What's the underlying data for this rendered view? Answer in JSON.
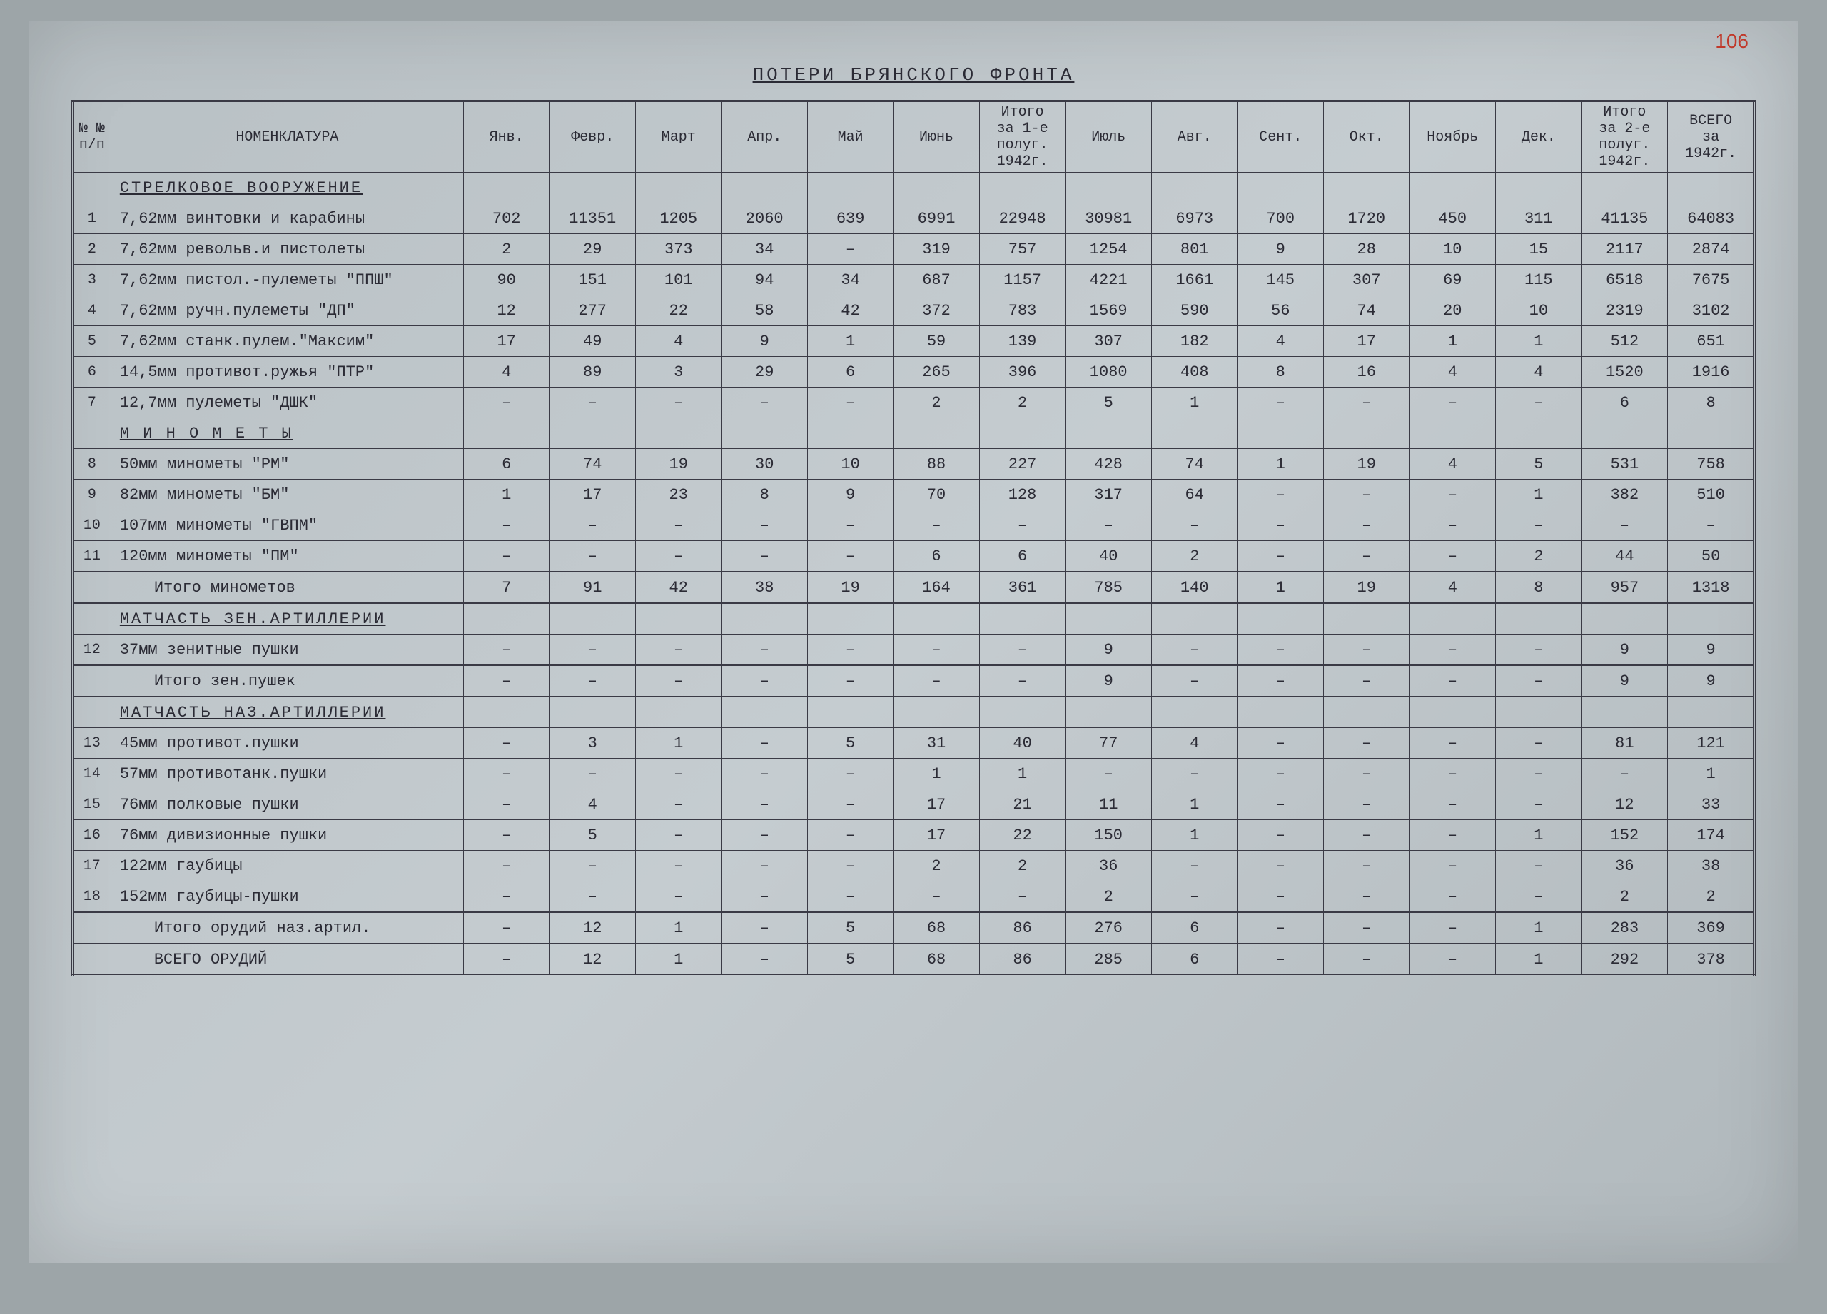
{
  "page_number": "106",
  "title": "ПОТЕРИ БРЯНСКОГО ФРОНТА",
  "columns": {
    "num": "№ №\nп/п",
    "name": "НОМЕНКЛАТУРА",
    "jan": "Янв.",
    "feb": "Февр.",
    "mar": "Март",
    "apr": "Апр.",
    "may": "Май",
    "jun": "Июнь",
    "h1": "Итого\nза 1-е\nполуг.\n1942г.",
    "jul": "Июль",
    "aug": "Авг.",
    "sep": "Сент.",
    "oct": "Окт.",
    "nov": "Ноябрь",
    "dec": "Дек.",
    "h2": "Итого\nза 2-е\nполуг.\n1942г.",
    "total": "ВСЕГО\nза\n1942г."
  },
  "sections": [
    {
      "type": "header",
      "name": "СТРЕЛКОВОЕ ВООРУЖЕНИЕ"
    },
    {
      "type": "row",
      "num": "1",
      "name": "7,62мм винтовки и карабины",
      "vals": [
        "702",
        "11351",
        "1205",
        "2060",
        "639",
        "6991",
        "22948",
        "30981",
        "6973",
        "700",
        "1720",
        "450",
        "311",
        "41135",
        "64083"
      ]
    },
    {
      "type": "row",
      "num": "2",
      "name": "7,62мм револьв.и пистолеты",
      "vals": [
        "2",
        "29",
        "373",
        "34",
        "–",
        "319",
        "757",
        "1254",
        "801",
        "9",
        "28",
        "10",
        "15",
        "2117",
        "2874"
      ]
    },
    {
      "type": "row",
      "num": "3",
      "name": "7,62мм пистол.-пулеметы \"ППШ\"",
      "vals": [
        "90",
        "151",
        "101",
        "94",
        "34",
        "687",
        "1157",
        "4221",
        "1661",
        "145",
        "307",
        "69",
        "115",
        "6518",
        "7675"
      ]
    },
    {
      "type": "row",
      "num": "4",
      "name": "7,62мм ручн.пулеметы \"ДП\"",
      "vals": [
        "12",
        "277",
        "22",
        "58",
        "42",
        "372",
        "783",
        "1569",
        "590",
        "56",
        "74",
        "20",
        "10",
        "2319",
        "3102"
      ]
    },
    {
      "type": "row",
      "num": "5",
      "name": "7,62мм станк.пулем.\"Максим\"",
      "vals": [
        "17",
        "49",
        "4",
        "9",
        "1",
        "59",
        "139",
        "307",
        "182",
        "4",
        "17",
        "1",
        "1",
        "512",
        "651"
      ]
    },
    {
      "type": "row",
      "num": "6",
      "name": "14,5мм противот.ружья \"ПТР\"",
      "vals": [
        "4",
        "89",
        "3",
        "29",
        "6",
        "265",
        "396",
        "1080",
        "408",
        "8",
        "16",
        "4",
        "4",
        "1520",
        "1916"
      ]
    },
    {
      "type": "row",
      "num": "7",
      "name": "12,7мм пулеметы \"ДШК\"",
      "vals": [
        "–",
        "–",
        "–",
        "–",
        "–",
        "2",
        "2",
        "5",
        "1",
        "–",
        "–",
        "–",
        "–",
        "6",
        "8"
      ]
    },
    {
      "type": "header",
      "name": "М И Н О М Е Т Ы"
    },
    {
      "type": "row",
      "num": "8",
      "name": "50мм минометы \"РМ\"",
      "vals": [
        "6",
        "74",
        "19",
        "30",
        "10",
        "88",
        "227",
        "428",
        "74",
        "1",
        "19",
        "4",
        "5",
        "531",
        "758"
      ]
    },
    {
      "type": "row",
      "num": "9",
      "name": "82мм минометы \"БМ\"",
      "vals": [
        "1",
        "17",
        "23",
        "8",
        "9",
        "70",
        "128",
        "317",
        "64",
        "–",
        "–",
        "–",
        "1",
        "382",
        "510"
      ]
    },
    {
      "type": "row",
      "num": "10",
      "name": "107мм минометы \"ГВПМ\"",
      "vals": [
        "–",
        "–",
        "–",
        "–",
        "–",
        "–",
        "–",
        "–",
        "–",
        "–",
        "–",
        "–",
        "–",
        "–",
        "–"
      ]
    },
    {
      "type": "row",
      "num": "11",
      "name": "120мм минометы \"ПМ\"",
      "vals": [
        "–",
        "–",
        "–",
        "–",
        "–",
        "6",
        "6",
        "40",
        "2",
        "–",
        "–",
        "–",
        "2",
        "44",
        "50"
      ]
    },
    {
      "type": "subtotal",
      "name": "Итого минометов",
      "vals": [
        "7",
        "91",
        "42",
        "38",
        "19",
        "164",
        "361",
        "785",
        "140",
        "1",
        "19",
        "4",
        "8",
        "957",
        "1318"
      ]
    },
    {
      "type": "header",
      "name": "МАТЧАСТЬ ЗЕН.АРТИЛЛЕРИИ"
    },
    {
      "type": "row",
      "num": "12",
      "name": "37мм зенитные пушки",
      "vals": [
        "–",
        "–",
        "–",
        "–",
        "–",
        "–",
        "–",
        "9",
        "–",
        "–",
        "–",
        "–",
        "–",
        "9",
        "9"
      ]
    },
    {
      "type": "subtotal",
      "name": "Итого зен.пушек",
      "vals": [
        "–",
        "–",
        "–",
        "–",
        "–",
        "–",
        "–",
        "9",
        "–",
        "–",
        "–",
        "–",
        "–",
        "9",
        "9"
      ]
    },
    {
      "type": "header",
      "name": "МАТЧАСТЬ НАЗ.АРТИЛЛЕРИИ"
    },
    {
      "type": "row",
      "num": "13",
      "name": "45мм противот.пушки",
      "vals": [
        "–",
        "3",
        "1",
        "–",
        "5",
        "31",
        "40",
        "77",
        "4",
        "–",
        "–",
        "–",
        "–",
        "81",
        "121"
      ]
    },
    {
      "type": "row",
      "num": "14",
      "name": "57мм противотанк.пушки",
      "vals": [
        "–",
        "–",
        "–",
        "–",
        "–",
        "1",
        "1",
        "–",
        "–",
        "–",
        "–",
        "–",
        "–",
        "–",
        "1"
      ]
    },
    {
      "type": "row",
      "num": "15",
      "name": "76мм полковые пушки",
      "vals": [
        "–",
        "4",
        "–",
        "–",
        "–",
        "17",
        "21",
        "11",
        "1",
        "–",
        "–",
        "–",
        "–",
        "12",
        "33"
      ]
    },
    {
      "type": "row",
      "num": "16",
      "name": "76мм дивизионные пушки",
      "vals": [
        "–",
        "5",
        "–",
        "–",
        "–",
        "17",
        "22",
        "150",
        "1",
        "–",
        "–",
        "–",
        "1",
        "152",
        "174"
      ]
    },
    {
      "type": "row",
      "num": "17",
      "name": "122мм гаубицы",
      "vals": [
        "–",
        "–",
        "–",
        "–",
        "–",
        "2",
        "2",
        "36",
        "–",
        "–",
        "–",
        "–",
        "–",
        "36",
        "38"
      ]
    },
    {
      "type": "row",
      "num": "18",
      "name": "152мм гаубицы-пушки",
      "vals": [
        "–",
        "–",
        "–",
        "–",
        "–",
        "–",
        "–",
        "2",
        "–",
        "–",
        "–",
        "–",
        "–",
        "2",
        "2"
      ]
    },
    {
      "type": "subtotal",
      "name": "Итого орудий наз.артил.",
      "vals": [
        "–",
        "12",
        "1",
        "–",
        "5",
        "68",
        "86",
        "276",
        "6",
        "–",
        "–",
        "–",
        "1",
        "283",
        "369"
      ]
    },
    {
      "type": "grand",
      "name": "ВСЕГО ОРУДИЙ",
      "vals": [
        "–",
        "12",
        "1",
        "–",
        "5",
        "68",
        "86",
        "285",
        "6",
        "–",
        "–",
        "–",
        "1",
        "292",
        "378"
      ]
    }
  ],
  "styling": {
    "background_color": "#b8c0c4",
    "text_color": "#2b2b35",
    "border_color": "#3a3a45",
    "page_number_color": "#c0392b",
    "font_family": "Courier New",
    "base_font_size": 22,
    "header_font_size": 20,
    "title_font_size": 26
  }
}
